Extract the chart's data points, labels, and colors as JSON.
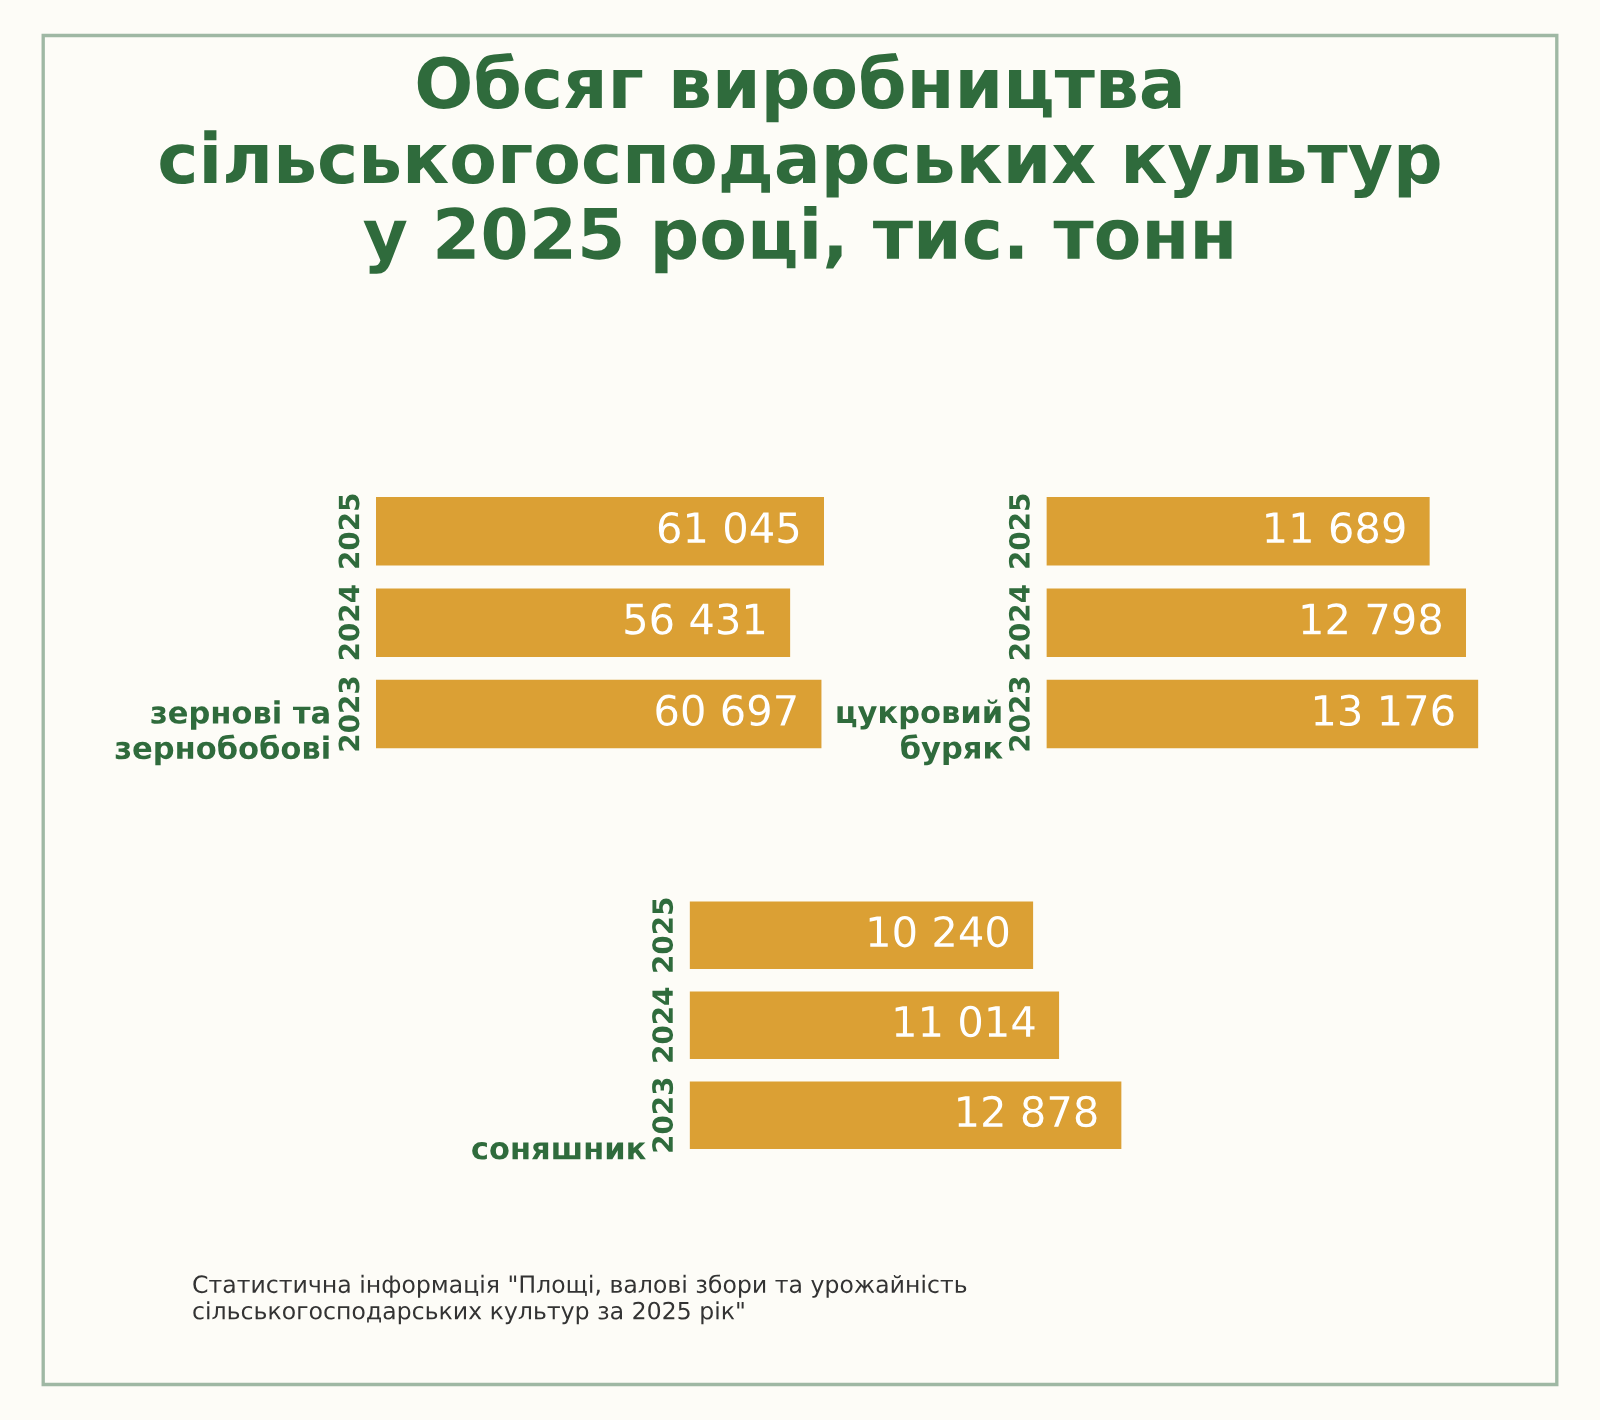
{
  "chart_data": [
    {
      "type": "bar",
      "orientation": "horizontal",
      "title": "Обсяг виробництва\nсільськогосподарських культур\nу 2025 році, тис. тонн",
      "ylabel": "зернові та\nзернобобові",
      "categories": [
        "2025",
        "2024",
        "2023"
      ],
      "values": [
        61045,
        56431,
        60697
      ],
      "value_labels": [
        "61 045",
        "56 431",
        "60 697"
      ],
      "color": "#dba034"
    },
    {
      "type": "bar",
      "orientation": "horizontal",
      "ylabel": "цукровий\nбуряк",
      "categories": [
        "2025",
        "2024",
        "2023"
      ],
      "values": [
        11689,
        12798,
        13176
      ],
      "value_labels": [
        "11 689",
        "12 798",
        "13 176"
      ],
      "color": "#dba034"
    },
    {
      "type": "bar",
      "orientation": "horizontal",
      "ylabel": "соняшник",
      "categories": [
        "2025",
        "2024",
        "2023"
      ],
      "values": [
        10240,
        11014,
        12878
      ],
      "value_labels": [
        "10 240",
        "11 014",
        "12 878"
      ],
      "color": "#dba034",
      "annotations": [
        "Статистична інформація \"Площі, валові збори та урожайність\nсільськогосподарських культур за 2025 рік\""
      ]
    }
  ]
}
